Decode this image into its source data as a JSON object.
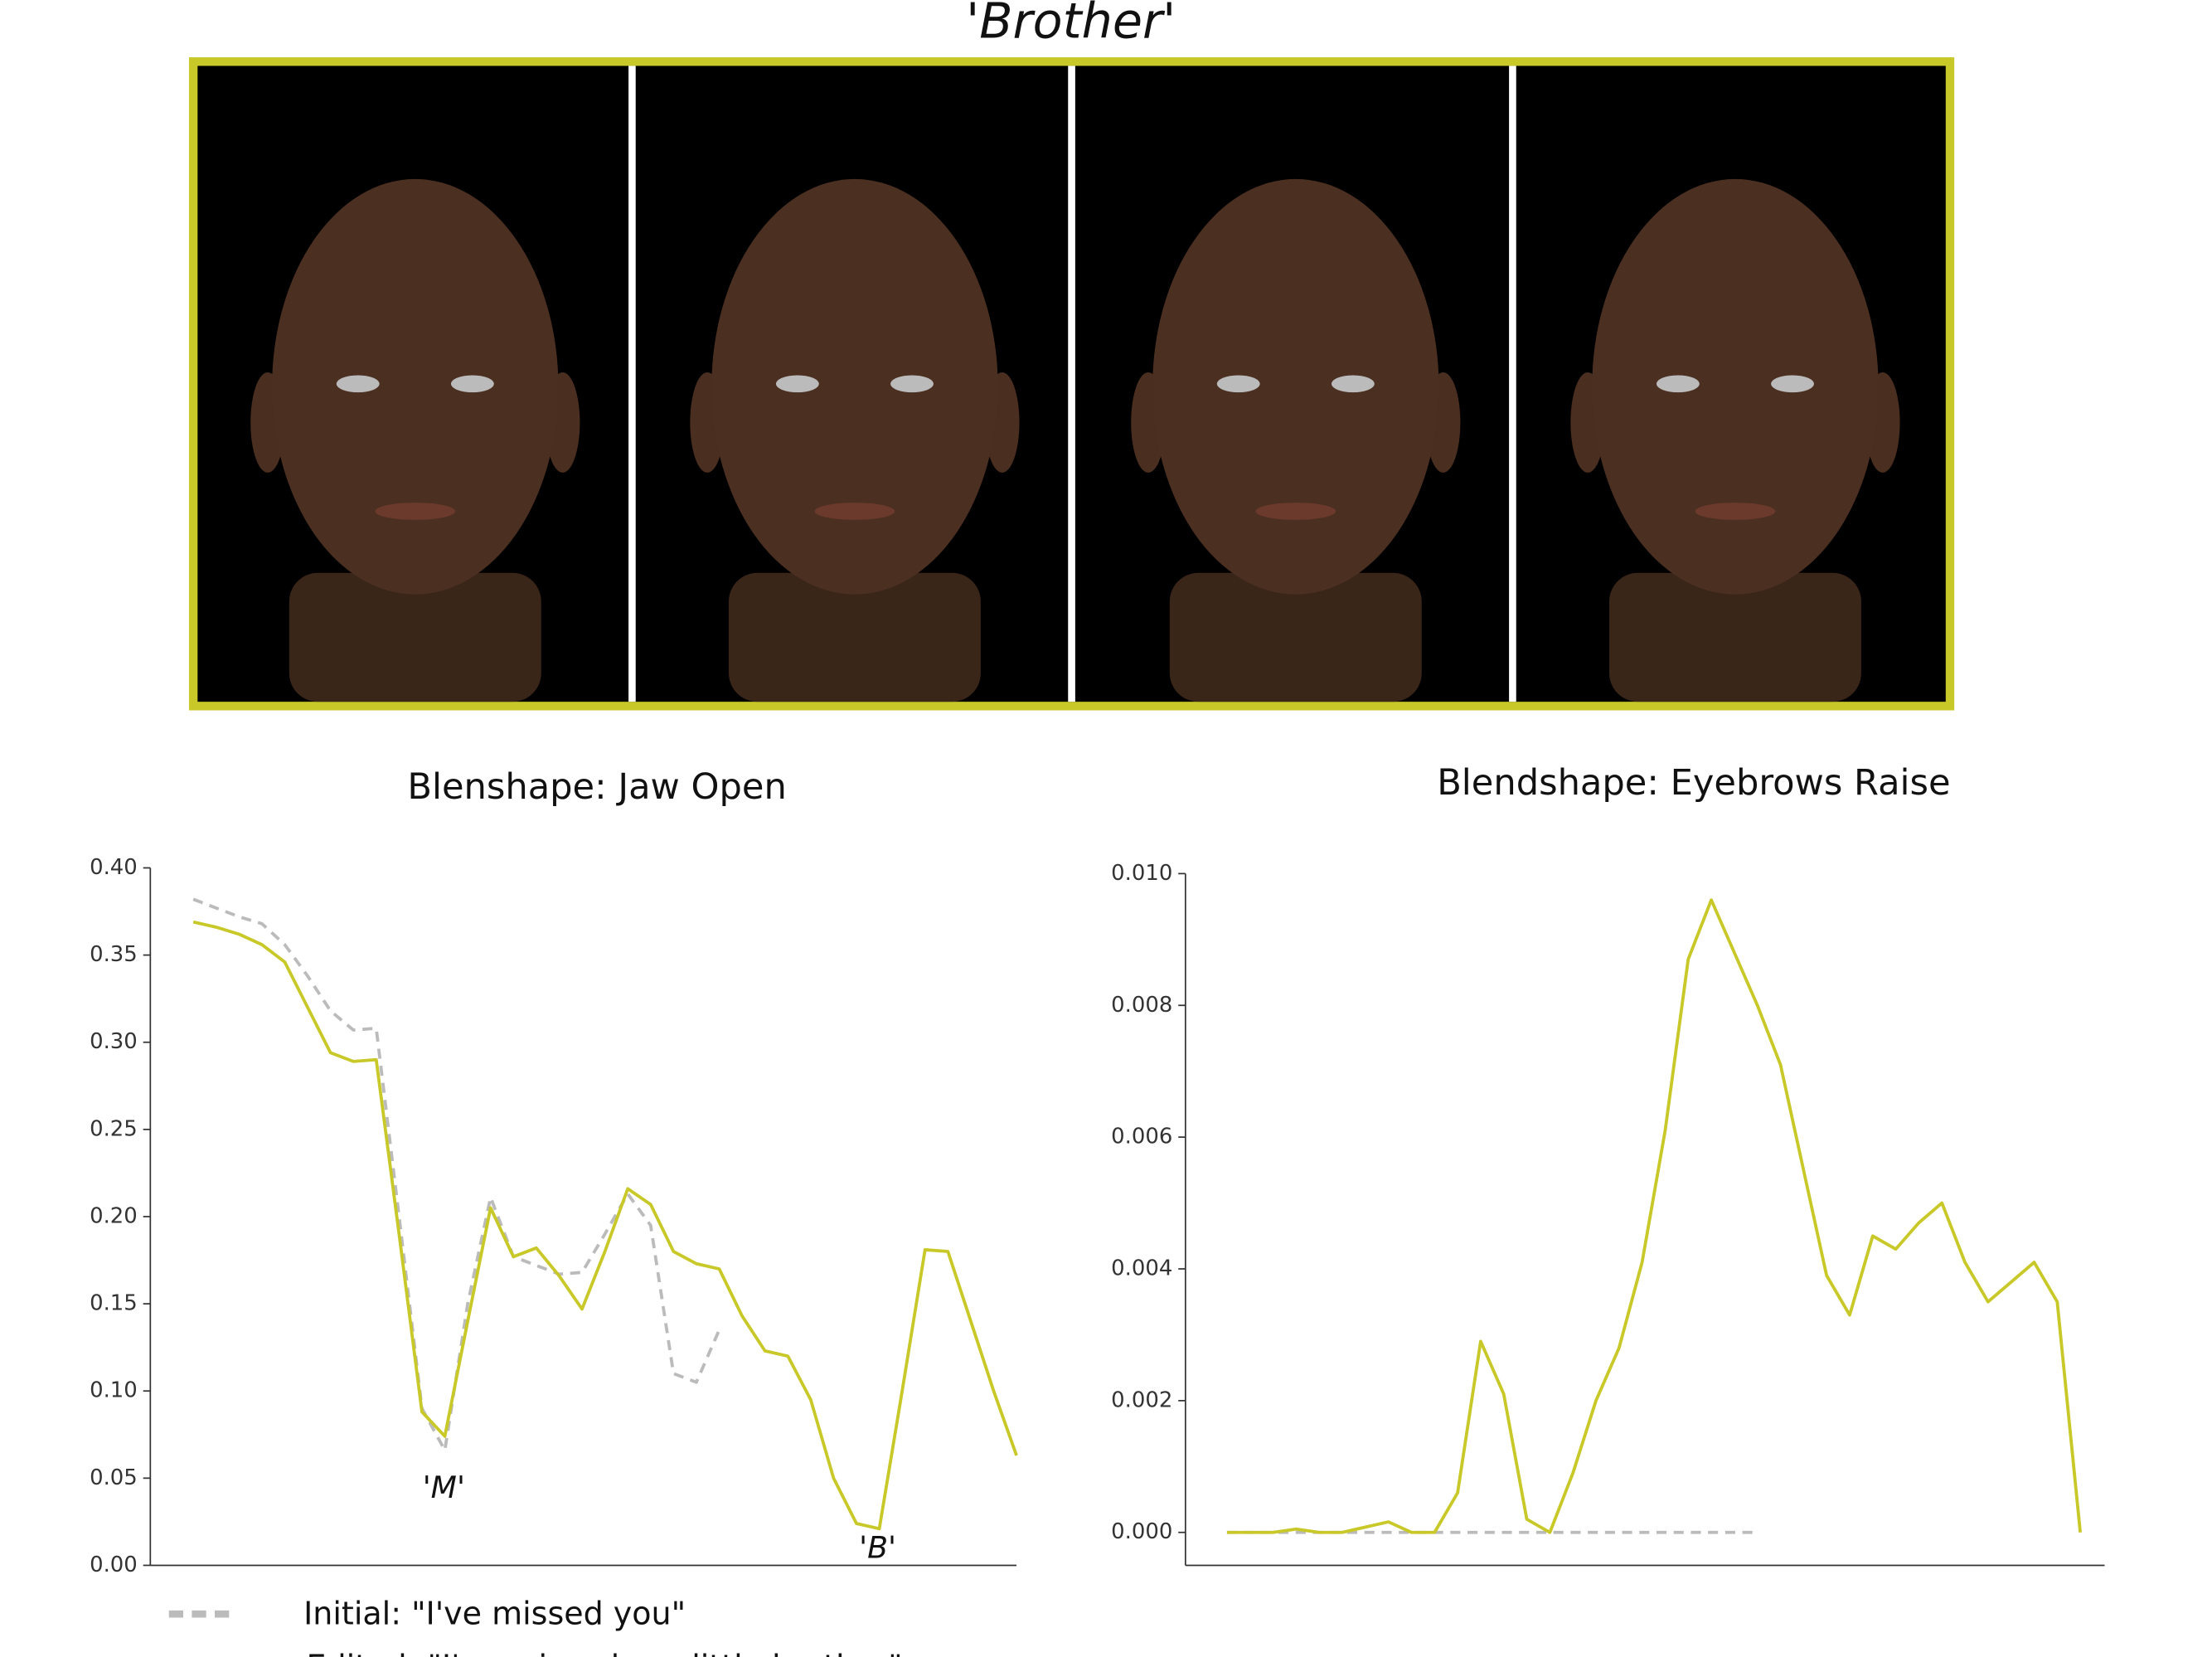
{
  "title": "'Brother'",
  "chart_data": [
    {
      "type": "line",
      "title": "Blenshape: Jaw Open",
      "ylim": [
        0,
        0.4
      ],
      "yticks": [
        {
          "value": 0,
          "label": "0.00"
        },
        {
          "value": 0.05,
          "label": "0.05"
        },
        {
          "value": 0.1,
          "label": "0.10"
        },
        {
          "value": 0.15,
          "label": "0.15"
        },
        {
          "value": 0.2,
          "label": "0.20"
        },
        {
          "value": 0.25,
          "label": "0.25"
        },
        {
          "value": 0.3,
          "label": "0.30"
        },
        {
          "value": 0.35,
          "label": "0.35"
        },
        {
          "value": 0.4,
          "label": "0.40"
        }
      ],
      "annotations": [
        "'M'",
        "'B'"
      ],
      "series": [
        {
          "name": "Initial: \"I've missed you\"",
          "color": "#bbbbbb",
          "dashed": true,
          "values": [
            0.382,
            0.377,
            0.372,
            0.368,
            0.356,
            0.338,
            0.318,
            0.307,
            0.308,
            0.2,
            0.09,
            0.066,
            0.15,
            0.211,
            0.177,
            0.172,
            0.167,
            0.168,
            0.19,
            0.213,
            0.195,
            0.11,
            0.105,
            0.135
          ]
        },
        {
          "name": "Edited: \"I've missed our little brother\"",
          "color": "#c8c828",
          "dashed": false,
          "values": [
            0.369,
            0.366,
            0.362,
            0.356,
            0.346,
            0.32,
            0.294,
            0.289,
            0.29,
            0.19,
            0.088,
            0.074,
            0.14,
            0.205,
            0.177,
            0.182,
            0.166,
            0.147,
            0.18,
            0.216,
            0.207,
            0.18,
            0.173,
            0.17,
            0.143,
            0.123,
            0.12,
            0.095,
            0.05,
            0.024,
            0.021,
            0.1,
            0.181,
            0.18,
            0.14,
            0.1,
            0.063
          ]
        }
      ]
    },
    {
      "type": "line",
      "title": "Blendshape: Eyebrows Raise",
      "ylim": [
        -0.0005,
        0.01
      ],
      "yticks": [
        {
          "value": 0,
          "label": "0.000"
        },
        {
          "value": 0.002,
          "label": "0.002"
        },
        {
          "value": 0.004,
          "label": "0.004"
        },
        {
          "value": 0.006,
          "label": "0.006"
        },
        {
          "value": 0.008,
          "label": "0.008"
        },
        {
          "value": 0.01,
          "label": "0.010"
        }
      ],
      "series": [
        {
          "color": "#bbbbbb",
          "dashed": true,
          "values": [
            0,
            0,
            0,
            0,
            0,
            0,
            0,
            0,
            0,
            0,
            0,
            0,
            0,
            0,
            0,
            0,
            0,
            0,
            0,
            0,
            0,
            0,
            0,
            0
          ]
        },
        {
          "color": "#c8c828",
          "dashed": false,
          "values": [
            0,
            0,
            0,
            5e-05,
            0,
            0,
            8e-05,
            0.00016,
            0,
            0,
            0.0006,
            0.0029,
            0.0021,
            0.0002,
            0,
            0.0009,
            0.002,
            0.0028,
            0.0041,
            0.0061,
            0.0087,
            0.0096,
            0.0088,
            0.008,
            0.0071,
            0.0055,
            0.0039,
            0.0033,
            0.0045,
            0.0043,
            0.0047,
            0.005,
            0.0041,
            0.0035,
            0.0038,
            0.0041,
            0.0035,
            0
          ]
        }
      ]
    }
  ]
}
